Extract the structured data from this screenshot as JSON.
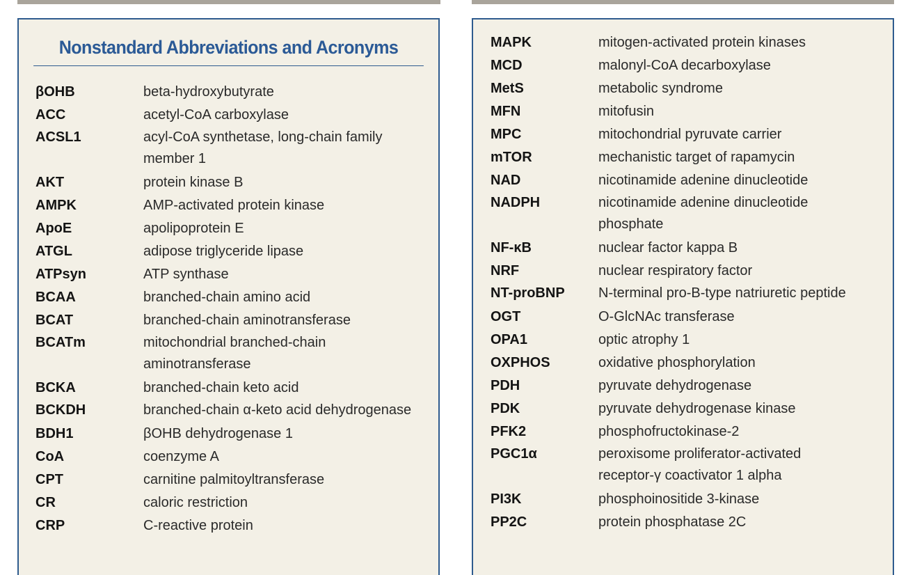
{
  "left_panel": {
    "title": "Nonstandard Abbreviations and Acronyms",
    "entries": [
      {
        "abbr": "βOHB",
        "def": "beta-hydroxybutyrate"
      },
      {
        "abbr": "ACC",
        "def": "acetyl-CoA carboxylase"
      },
      {
        "abbr": "ACSL1",
        "def": "acyl-CoA synthetase, long-chain family member 1"
      },
      {
        "abbr": "AKT",
        "def": "protein kinase B"
      },
      {
        "abbr": "AMPK",
        "def": "AMP-activated protein kinase"
      },
      {
        "abbr": "ApoE",
        "def": "apolipoprotein E"
      },
      {
        "abbr": "ATGL",
        "def": "adipose triglyceride lipase"
      },
      {
        "abbr": "ATPsyn",
        "def": "ATP synthase"
      },
      {
        "abbr": "BCAA",
        "def": "branched-chain amino acid"
      },
      {
        "abbr": "BCAT",
        "def": "branched-chain aminotransferase"
      },
      {
        "abbr": "BCATm",
        "def": "mitochondrial branched-chain aminotransferase"
      },
      {
        "abbr": "BCKA",
        "def": "branched-chain keto acid"
      },
      {
        "abbr": "BCKDH",
        "def": "branched-chain α-keto acid dehydrogenase"
      },
      {
        "abbr": "BDH1",
        "def": "βOHB dehydrogenase 1"
      },
      {
        "abbr": "CoA",
        "def": "coenzyme A"
      },
      {
        "abbr": "CPT",
        "def": "carnitine palmitoyltransferase"
      },
      {
        "abbr": "CR",
        "def": "caloric restriction"
      },
      {
        "abbr": "CRP",
        "def": "C-reactive protein"
      }
    ]
  },
  "right_panel": {
    "entries": [
      {
        "abbr": "MAPK",
        "def": "mitogen-activated protein kinases"
      },
      {
        "abbr": "MCD",
        "def": "malonyl-CoA decarboxylase"
      },
      {
        "abbr": "MetS",
        "def": "metabolic syndrome"
      },
      {
        "abbr": "MFN",
        "def": "mitofusin"
      },
      {
        "abbr": "MPC",
        "def": "mitochondrial pyruvate carrier"
      },
      {
        "abbr": "mTOR",
        "def": "mechanistic target of rapamycin"
      },
      {
        "abbr": "NAD",
        "def": "nicotinamide adenine dinucleotide"
      },
      {
        "abbr": "NADPH",
        "def": "nicotinamide adenine dinucleotide phosphate"
      },
      {
        "abbr": "NF-κB",
        "def": "nuclear factor kappa B"
      },
      {
        "abbr": "NRF",
        "def": "nuclear respiratory factor"
      },
      {
        "abbr": "NT-proBNP",
        "def": "N-terminal pro-B-type natriuretic peptide"
      },
      {
        "abbr": "OGT",
        "def": "O-GlcNAc transferase"
      },
      {
        "abbr": "OPA1",
        "def": "optic atrophy 1"
      },
      {
        "abbr": "OXPHOS",
        "def": "oxidative phosphorylation"
      },
      {
        "abbr": "PDH",
        "def": "pyruvate dehydrogenase"
      },
      {
        "abbr": "PDK",
        "def": "pyruvate dehydrogenase kinase"
      },
      {
        "abbr": "PFK2",
        "def": "phosphofructokinase-2"
      },
      {
        "abbr": "PGC1α",
        "def": "peroxisome proliferator-activated receptor-γ coactivator 1 alpha"
      },
      {
        "abbr": "PI3K",
        "def": "phosphoinositide 3-kinase"
      },
      {
        "abbr": "PP2C",
        "def": "protein phosphatase 2C"
      }
    ]
  }
}
